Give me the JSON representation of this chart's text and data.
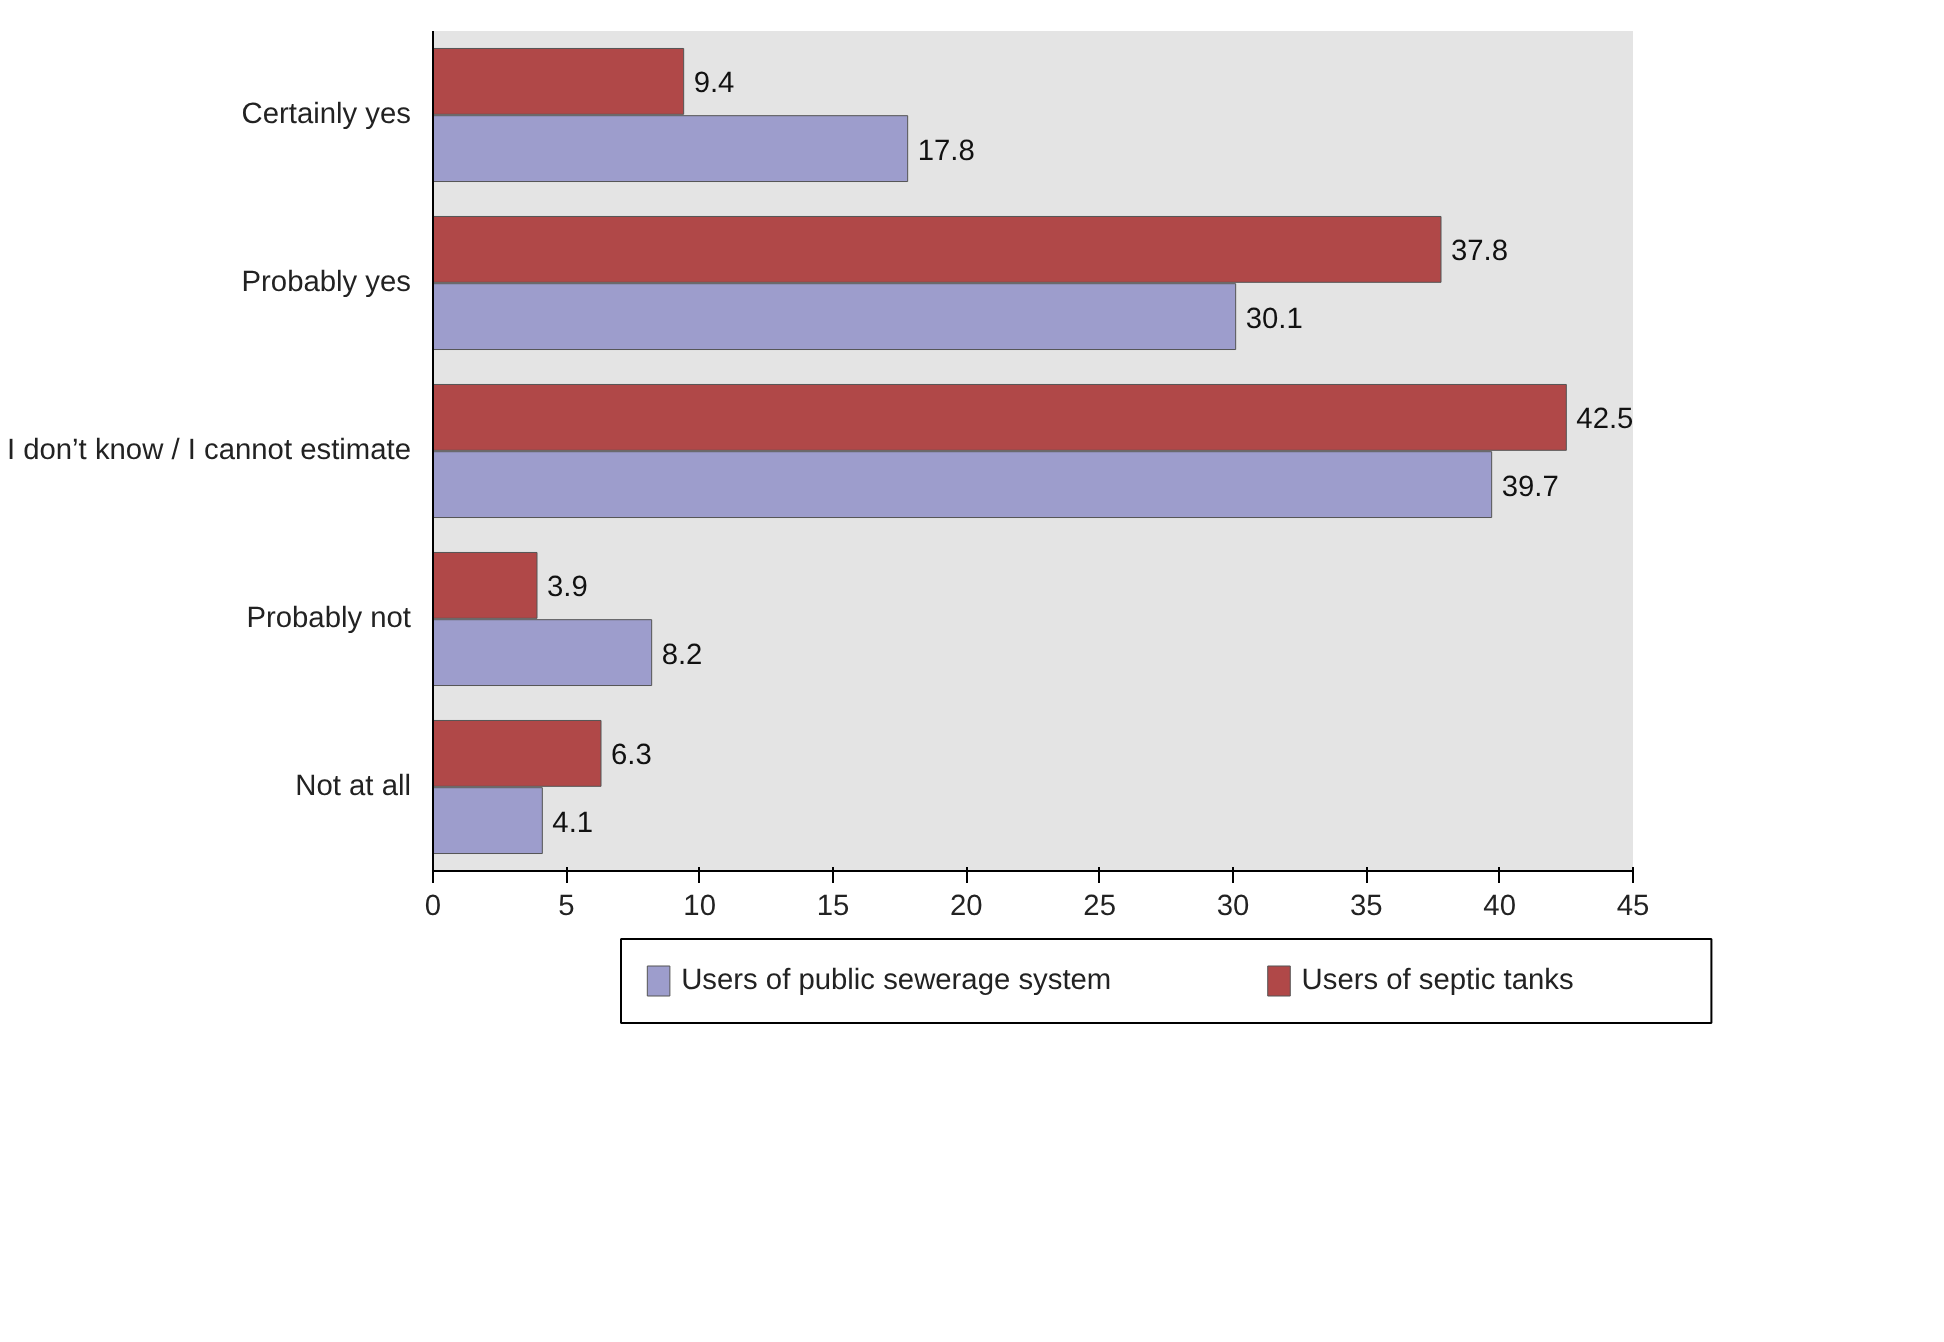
{
  "chart_data": {
    "type": "bar",
    "orientation": "horizontal",
    "categories": [
      "Certainly yes",
      "Probably yes",
      "I don’t know / I cannot estimate",
      "Probably not",
      "Not at all"
    ],
    "series": [
      {
        "name": "Users of public sewerage system",
        "color": "#9d9dcc",
        "values": [
          17.8,
          30.1,
          39.7,
          8.2,
          4.1
        ]
      },
      {
        "name": "Users of septic tanks",
        "color": "#b04848",
        "values": [
          9.4,
          37.8,
          42.5,
          3.9,
          6.3
        ]
      }
    ],
    "xlim": [
      0,
      45
    ],
    "xticks": [
      0,
      5,
      10,
      15,
      20,
      25,
      30,
      35,
      40,
      45
    ],
    "data_labels": true,
    "legend": "bottom"
  }
}
